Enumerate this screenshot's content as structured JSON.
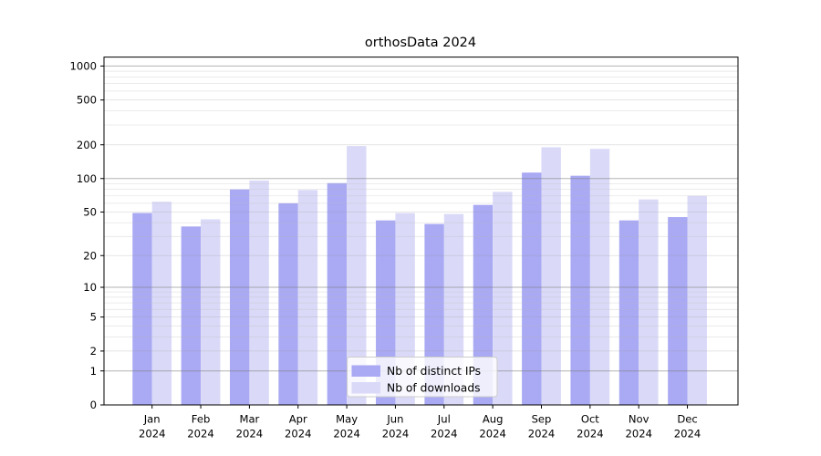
{
  "title": "orthosData 2024",
  "chart_data": {
    "type": "bar",
    "title": "orthosData 2024",
    "months": [
      "Jan",
      "Feb",
      "Mar",
      "Apr",
      "May",
      "Jun",
      "Jul",
      "Aug",
      "Sep",
      "Oct",
      "Nov",
      "Dec"
    ],
    "year": "2024",
    "series": [
      {
        "name": "Nb of distinct IPs",
        "color": "#a9a9f4",
        "values": [
          49,
          37,
          80,
          60,
          91,
          42,
          39,
          58,
          113,
          106,
          42,
          45
        ]
      },
      {
        "name": "Nb of downloads",
        "color": "#dadaf8",
        "values": [
          62,
          43,
          96,
          79,
          195,
          49,
          48,
          76,
          190,
          184,
          65,
          70
        ]
      }
    ],
    "yticks": [
      0,
      1,
      2,
      5,
      10,
      20,
      50,
      100,
      200,
      500,
      1000
    ],
    "minor_gridlines": [
      3,
      4,
      6,
      7,
      8,
      9,
      30,
      40,
      60,
      70,
      80,
      90,
      300,
      400,
      600,
      700,
      800,
      900
    ],
    "scale": "log1p",
    "ylim": [
      0,
      1200
    ],
    "grid": true,
    "legend_position": "lower center",
    "colors": {
      "grid_decade": "#808080",
      "grid_major": "#9a9a9a",
      "grid_minor": "#b8b8b8",
      "axis": "#000000",
      "legend_border": "#cccccc",
      "legend_bg": "#ffffff"
    }
  }
}
